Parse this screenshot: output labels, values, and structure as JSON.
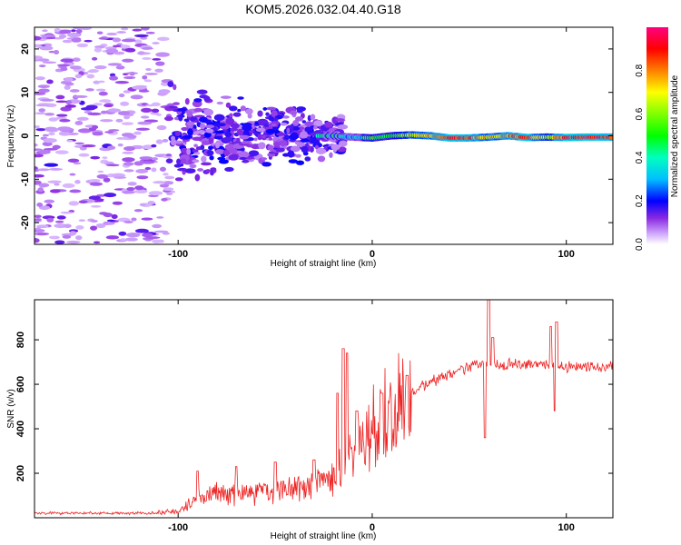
{
  "page_title": "KOM5.2026.032.04.40.G18",
  "chart_data": [
    {
      "type": "heatmap",
      "title": "KOM5.2026.032.04.40.G18",
      "xlabel": "Height of straight line (km)",
      "ylabel": "Frequency (Hz)",
      "xlim": [
        -174,
        124
      ],
      "ylim": [
        -25,
        25
      ],
      "x_ticks": [
        -100,
        0,
        100
      ],
      "y_ticks": [
        -20,
        -10,
        0,
        10,
        20
      ],
      "x_tick_labels": [
        "-100",
        "0",
        "100"
      ],
      "y_tick_labels": [
        "-20",
        "-10",
        "0",
        "10",
        "20"
      ],
      "colorbar": {
        "label": "Normalized spectral amplitude",
        "range": [
          0,
          1
        ],
        "ticks": [
          0.0,
          0.2,
          0.4,
          0.6,
          0.8
        ],
        "tick_labels": [
          "0.0",
          "0.2",
          "0.4",
          "0.6",
          "0.8"
        ]
      },
      "ridge": [
        {
          "x": -20,
          "y": 0.0,
          "amp": 0.45
        },
        {
          "x": -10,
          "y": -0.3,
          "amp": 0.5
        },
        {
          "x": 0,
          "y": -0.5,
          "amp": 0.55
        },
        {
          "x": 10,
          "y": 0.0,
          "amp": 0.5
        },
        {
          "x": 20,
          "y": 0.2,
          "amp": 0.7
        },
        {
          "x": 30,
          "y": 0.0,
          "amp": 0.75
        },
        {
          "x": 40,
          "y": -0.5,
          "amp": 0.95
        },
        {
          "x": 50,
          "y": -0.5,
          "amp": 0.85
        },
        {
          "x": 60,
          "y": -0.3,
          "amp": 0.7
        },
        {
          "x": 70,
          "y": 0.0,
          "amp": 0.8
        },
        {
          "x": 80,
          "y": -0.4,
          "amp": 0.9
        },
        {
          "x": 90,
          "y": -0.3,
          "amp": 0.6
        },
        {
          "x": 100,
          "y": -0.4,
          "amp": 0.9
        },
        {
          "x": 110,
          "y": -0.3,
          "amp": 0.92
        },
        {
          "x": 124,
          "y": -0.3,
          "amp": 0.88
        }
      ]
    },
    {
      "type": "line",
      "title": "",
      "xlabel": "Height of straight line (km)",
      "ylabel": "SNR (v/v)",
      "xlim": [
        -174,
        124
      ],
      "ylim": [
        0,
        980
      ],
      "x_ticks": [
        -100,
        0,
        100
      ],
      "y_ticks": [
        200,
        400,
        600,
        800
      ],
      "x_tick_labels": [
        "-100",
        "0",
        "100"
      ],
      "y_tick_labels": [
        "200",
        "400",
        "600",
        "800"
      ],
      "series": [
        {
          "name": "SNR",
          "color": "#ee2222",
          "trend": [
            [
              -174,
              20
            ],
            [
              -110,
              20
            ],
            [
              -100,
              30
            ],
            [
              -90,
              80
            ],
            [
              -80,
              110
            ],
            [
              -60,
              120
            ],
            [
              -40,
              130
            ],
            [
              -20,
              170
            ],
            [
              -12,
              260
            ],
            [
              -5,
              350
            ],
            [
              0,
              420
            ],
            [
              10,
              460
            ],
            [
              20,
              560
            ],
            [
              30,
              610
            ],
            [
              40,
              640
            ],
            [
              50,
              680
            ],
            [
              60,
              690
            ],
            [
              70,
              690
            ],
            [
              80,
              690
            ],
            [
              90,
              690
            ],
            [
              100,
              680
            ],
            [
              124,
              680
            ]
          ],
          "spikes": [
            [
              -90,
              210
            ],
            [
              -70,
              230
            ],
            [
              -50,
              250
            ],
            [
              -30,
              260
            ],
            [
              -18,
              560
            ],
            [
              -15,
              760
            ],
            [
              -13,
              740
            ],
            [
              -8,
              480
            ],
            [
              5,
              560
            ],
            [
              18,
              640
            ],
            [
              58,
              360
            ],
            [
              60,
              980
            ],
            [
              62,
              810
            ],
            [
              92,
              860
            ],
            [
              94,
              480
            ],
            [
              95,
              880
            ]
          ]
        }
      ]
    }
  ]
}
